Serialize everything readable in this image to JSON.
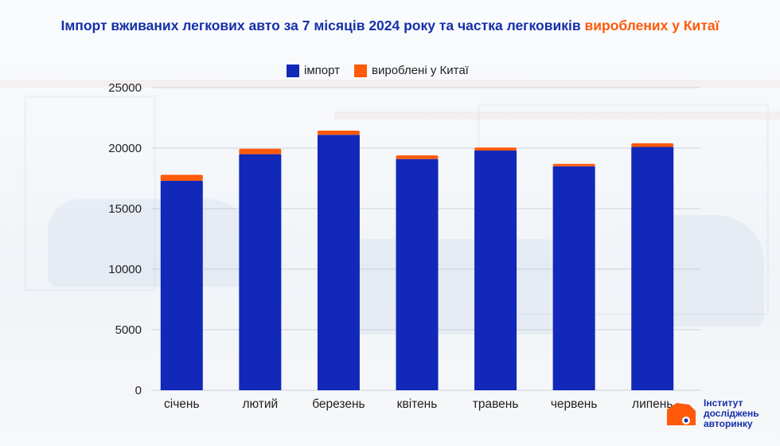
{
  "title": {
    "main": "Імпорт вживаних легкових авто за 7 місяців 2024 року та частка легковиків",
    "highlight": "вироблених у Китаї"
  },
  "colors": {
    "import": "#1128b8",
    "china": "#ff5a0a",
    "title": "#1530a8"
  },
  "legend": [
    {
      "label": "імпорт",
      "color": "#1128b8"
    },
    {
      "label": "вироблені у Китаї",
      "color": "#ff5a0a"
    }
  ],
  "chart_data": {
    "type": "bar",
    "stacked": true,
    "categories": [
      "січень",
      "лютий",
      "березень",
      "квітень",
      "травень",
      "червень",
      "липень"
    ],
    "series": [
      {
        "name": "імпорт",
        "values": [
          17300,
          19500,
          21100,
          19100,
          19800,
          18500,
          20100
        ]
      },
      {
        "name": "вироблені у Китаї",
        "values": [
          500,
          450,
          350,
          300,
          250,
          200,
          300
        ]
      }
    ],
    "yticks": [
      0,
      5000,
      10000,
      15000,
      20000,
      25000
    ],
    "ylim": [
      0,
      25000
    ],
    "grid": true,
    "legend_position": "top-center"
  },
  "logo": {
    "lines": [
      "Інститут",
      "досліджень",
      "авторинку"
    ]
  }
}
